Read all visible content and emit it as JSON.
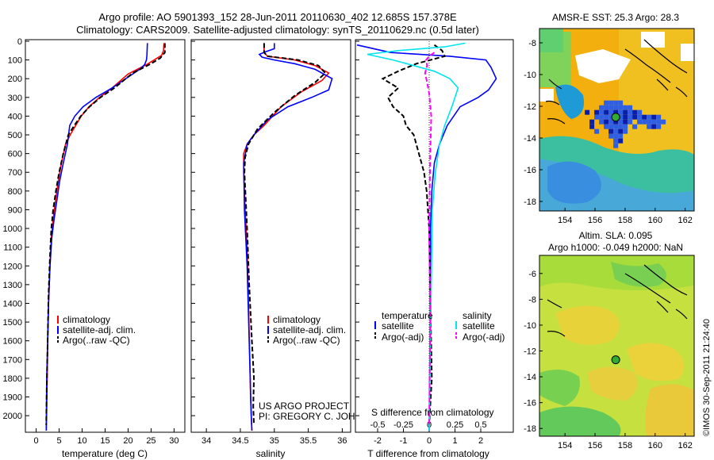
{
  "header": {
    "line1": "Argo profile: AO 5901393_152 28-Jun-2011 20110630_402 12.685S 157.378E",
    "line2": "Climatology: CARS2009. Satellite-adjusted climatology: synTS_20110629.nc (0.5d later)"
  },
  "colors": {
    "climatology": "#ff0000",
    "satellite": "#0000ff",
    "argo": "#000000",
    "sal_satellite": "#00e5ee",
    "sal_argo": "#ff00ff"
  },
  "chart_data": [
    {
      "type": "line",
      "name": "temperature-profile",
      "xlabel": "temperature (deg C)",
      "ylabel": "",
      "xlim": [
        -2,
        32
      ],
      "ylim": [
        2080,
        0
      ],
      "xticks": [
        0,
        5,
        10,
        15,
        20,
        25,
        30
      ],
      "yticks": [
        0,
        100,
        200,
        300,
        400,
        500,
        600,
        700,
        800,
        900,
        1000,
        1100,
        1200,
        1300,
        1400,
        1500,
        1600,
        1700,
        1800,
        1900,
        2000
      ],
      "legend": [
        {
          "label": "climatology",
          "color": "#ff0000"
        },
        {
          "label": "satellite-adj. clim.",
          "color": "#0000ff"
        },
        {
          "label": "Argo(..raw -QC)",
          "color": "#000000"
        }
      ],
      "series": [
        {
          "name": "climatology",
          "color": "#ff0000",
          "dash": "",
          "x": [
            27.8,
            27.7,
            27.3,
            24,
            20,
            16.5,
            13.8,
            11.5,
            9.8,
            8.6,
            7.4,
            6.4,
            5.5,
            4.8,
            4.2,
            3.7,
            3.3,
            3.0,
            2.7,
            2.5,
            2.4,
            2.3,
            2.2
          ],
          "y": [
            10,
            50,
            75,
            125,
            175,
            250,
            300,
            350,
            400,
            450,
            500,
            550,
            650,
            750,
            850,
            950,
            1050,
            1200,
            1400,
            1600,
            1800,
            1950,
            2080
          ]
        },
        {
          "name": "satellite-adj. clim.",
          "color": "#0000ff",
          "dash": "",
          "x": [
            24.2,
            24.1,
            24,
            23.6,
            22.5,
            19.5,
            16.5,
            13,
            10.2,
            8.4,
            7.3,
            6.8,
            5.9,
            5.1,
            4.5,
            3.9,
            3.4,
            3.0,
            2.7,
            2.5,
            2.3,
            2.2
          ],
          "y": [
            10,
            75,
            100,
            125,
            150,
            200,
            250,
            300,
            350,
            400,
            450,
            550,
            650,
            750,
            850,
            950,
            1050,
            1200,
            1400,
            1600,
            1800,
            2080
          ]
        },
        {
          "name": "Argo(..raw -QC)",
          "color": "#000000",
          "dash": "6,3",
          "x": [
            28,
            28,
            27,
            25,
            21,
            17,
            14,
            11.6,
            9.7,
            8.3,
            7.0,
            5.9,
            5.0,
            4.3,
            3.7,
            3.3,
            3.0,
            2.7,
            2.5,
            2.3,
            2.2
          ],
          "y": [
            10,
            60,
            90,
            120,
            170,
            250,
            300,
            350,
            400,
            450,
            500,
            600,
            700,
            800,
            900,
            1000,
            1150,
            1350,
            1600,
            1850,
            2050
          ]
        }
      ]
    },
    {
      "type": "line",
      "name": "salinity-profile",
      "xlabel": "salinity",
      "ylabel": "",
      "xlim": [
        33.8,
        36.1
      ],
      "ylim": [
        2080,
        0
      ],
      "xticks": [
        34,
        34.5,
        35,
        35.5,
        36
      ],
      "legend": [
        {
          "label": "climatology",
          "color": "#ff0000"
        },
        {
          "label": "satellite-adj. clim.",
          "color": "#0000ff"
        },
        {
          "label": "Argo(..raw -QC)",
          "color": "#000000"
        }
      ],
      "annotation": [
        "US ARGO PROJECT",
        "PI: GREGORY C. JOHNSON"
      ],
      "series": [
        {
          "name": "climatology",
          "color": "#ff0000",
          "dash": "",
          "x": [
            34.85,
            34.85,
            34.9,
            35.3,
            35.6,
            35.8,
            35.7,
            35.4,
            35.1,
            34.85,
            34.7,
            34.6,
            34.55,
            34.55,
            34.57,
            34.6,
            34.62,
            34.64,
            34.65,
            34.66,
            34.67
          ],
          "y": [
            10,
            60,
            80,
            100,
            130,
            170,
            210,
            270,
            350,
            450,
            500,
            550,
            600,
            700,
            900,
            1100,
            1400,
            1700,
            1900,
            2000,
            2080
          ]
        },
        {
          "name": "satellite-adj. clim.",
          "color": "#0000ff",
          "dash": "",
          "x": [
            35.0,
            35.0,
            34.88,
            34.78,
            34.82,
            35.0,
            35.3,
            35.6,
            35.85,
            35.8,
            35.55,
            35.2,
            34.9,
            34.7,
            34.6,
            34.55,
            34.56,
            34.6,
            34.63,
            34.66,
            34.67
          ],
          "y": [
            10,
            40,
            55,
            70,
            85,
            100,
            120,
            150,
            200,
            260,
            300,
            350,
            420,
            500,
            550,
            650,
            900,
            1200,
            1600,
            2000,
            2080
          ]
        },
        {
          "name": "Argo(..raw -QC)",
          "color": "#000000",
          "dash": "6,3",
          "x": [
            34.85,
            34.85,
            34.9,
            35.35,
            35.65,
            35.75,
            35.6,
            35.3,
            35.0,
            34.75,
            34.62,
            34.57,
            34.56,
            34.6,
            34.63,
            34.67,
            34.7,
            34.69,
            34.7
          ],
          "y": [
            10,
            60,
            80,
            100,
            130,
            170,
            220,
            290,
            380,
            470,
            550,
            620,
            700,
            1000,
            1300,
            1600,
            1800,
            1950,
            2050
          ]
        }
      ]
    },
    {
      "type": "line",
      "name": "difference-from-climatology",
      "xlabel": "T difference from climatology",
      "x2label": "S difference from climatology",
      "xlim": [
        -2.8,
        3.2
      ],
      "x2lim": [
        -0.7,
        0.8
      ],
      "ylim": [
        2080,
        0
      ],
      "xticks": [
        -2,
        -1,
        0,
        1,
        2
      ],
      "x2ticks": [
        "-0.5",
        "-0.25",
        "0",
        "0.25",
        "0.5"
      ],
      "x2tickvalues": [
        -0.5,
        -0.25,
        0,
        0.25,
        0.5
      ],
      "legend_headers": [
        "temperature",
        "salinity"
      ],
      "legend": [
        {
          "label": "satellite",
          "color": "#0000ff"
        },
        {
          "label": "Argo(-adj)",
          "color": "#000000"
        },
        {
          "label": "satellite",
          "color": "#00e5ee"
        },
        {
          "label": "Argo(-adj)",
          "color": "#ff00ff"
        }
      ],
      "series": [
        {
          "name": "T satellite",
          "color": "#0000ff",
          "dash": "",
          "axis": "T",
          "x": [
            -3.5,
            -1.5,
            0.8,
            2.2,
            2.4,
            2.6,
            2.3,
            1.9,
            1.2,
            0.7,
            0.4,
            0.2,
            0.1,
            0.05,
            0.05,
            0.02,
            0.0
          ],
          "y": [
            20,
            60,
            80,
            100,
            140,
            200,
            260,
            300,
            350,
            450,
            550,
            650,
            800,
            1000,
            1400,
            1800,
            2080
          ]
        },
        {
          "name": "T Argo(-adj)",
          "color": "#000000",
          "dash": "6,3",
          "axis": "T",
          "x": [
            0.2,
            0.5,
            0.6,
            -0.5,
            -1.2,
            -1.8,
            -1.2,
            -1.6,
            -1.4,
            -1.0,
            -0.9,
            -0.6,
            -0.4,
            -0.2,
            -0.1,
            0.0,
            0.05,
            0.1,
            0.0
          ],
          "y": [
            20,
            50,
            80,
            120,
            160,
            200,
            250,
            300,
            350,
            400,
            450,
            500,
            600,
            700,
            800,
            1000,
            1400,
            1800,
            2050
          ]
        },
        {
          "name": "S satellite",
          "color": "#00e5ee",
          "dash": "",
          "axis": "S",
          "x": [
            0.35,
            0.15,
            -0.3,
            -0.6,
            -0.35,
            0.05,
            0.2,
            0.28,
            0.22,
            0.15,
            0.1,
            0.06,
            0.03,
            0.02,
            0.0
          ],
          "y": [
            10,
            30,
            50,
            70,
            100,
            160,
            200,
            250,
            350,
            450,
            550,
            700,
            900,
            1300,
            2080
          ]
        },
        {
          "name": "S Argo(-adj)",
          "color": "#ff00ff",
          "dash": "6,3",
          "axis": "S",
          "x": [
            0.05,
            0.0,
            -0.03,
            -0.02,
            -0.04,
            -0.02,
            0.0,
            0.02,
            0.01,
            0.0,
            0.01,
            0.0
          ],
          "y": [
            60,
            80,
            100,
            130,
            170,
            220,
            280,
            400,
            600,
            1000,
            1500,
            2050
          ]
        }
      ]
    },
    {
      "type": "heatmap",
      "name": "sst-map",
      "title": "AMSR-E SST: 25.3 Argo: 28.3",
      "xticks": [
        154,
        156,
        158,
        160,
        162
      ],
      "yticks": [
        -8,
        -10,
        -12,
        -14,
        -16,
        -18
      ],
      "xlim": [
        152.3,
        162.6
      ],
      "ylim": [
        -18.6,
        -7.1
      ],
      "marker": {
        "lon": 157.378,
        "lat": -12.685,
        "color": "#33aa33"
      }
    },
    {
      "type": "heatmap",
      "name": "sla-map",
      "title": "Altim. SLA: 0.095",
      "subtitle": "Argo h1000: -0.049 h2000: NaN",
      "xticks": [
        154,
        156,
        158,
        160,
        162
      ],
      "yticks": [
        -6,
        -8,
        -10,
        -12,
        -14,
        -16,
        -18
      ],
      "xlim": [
        152.3,
        162.6
      ],
      "ylim": [
        -18.6,
        -4.6
      ],
      "marker": {
        "lon": 157.378,
        "lat": -12.685,
        "color": "#33aa33"
      }
    }
  ],
  "footer_stamp": "©IMOS 30-Sep-2011 21:24:40"
}
